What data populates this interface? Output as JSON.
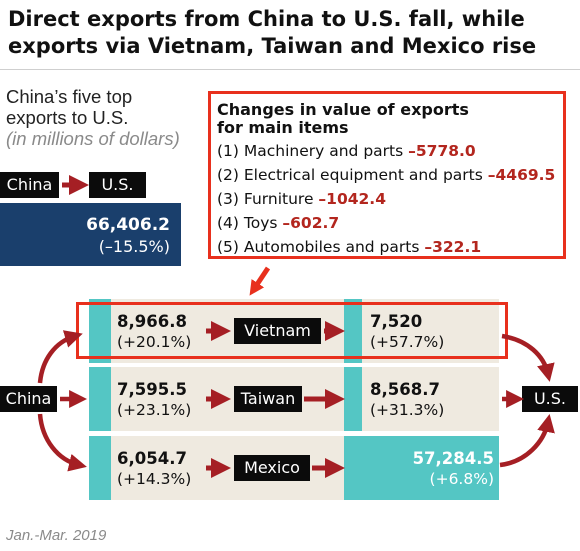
{
  "title": "Direct exports from China to U.S. fall, while exports via Vietnam, Taiwan and Mexico rise",
  "subtitle": {
    "line1": "China’s five top",
    "line2": "exports to U.S.",
    "unit": "(in millions of dollars)"
  },
  "direct": {
    "from": "China",
    "to": "U.S.",
    "value": "66,406.2",
    "change": "(–15.5%)"
  },
  "box": {
    "title_line1": "Changes in value of exports",
    "title_line2": "for main items",
    "items": [
      {
        "label": "(1) Machinery and parts",
        "value": "–5778.0"
      },
      {
        "label": "(2) Electrical equipment and parts",
        "value": "–4469.5"
      },
      {
        "label": "(3) Furniture",
        "value": "–1042.4"
      },
      {
        "label": "(4) Toys",
        "value": "–602.7"
      },
      {
        "label": "(5) Automobiles and parts",
        "value": "–322.1"
      }
    ]
  },
  "routes": {
    "origin": "China",
    "destination": "U.S.",
    "rows": [
      {
        "via": "Vietnam",
        "in_value": "8,966.8",
        "in_change": "(+20.1%)",
        "out_value": "7,520",
        "out_change": "(+57.7%)"
      },
      {
        "via": "Taiwan",
        "in_value": "7,595.5",
        "in_change": "(+23.1%)",
        "out_value": "8,568.7",
        "out_change": "(+31.3%)"
      },
      {
        "via": "Mexico",
        "in_value": "6,054.7",
        "in_change": "(+14.3%)",
        "out_value": "57,284.5",
        "out_change": "(+6.8%)"
      }
    ]
  },
  "date": "Jan.-Mar. 2019",
  "colors": {
    "navy": "#1a3f6c",
    "teal": "#54c6c4",
    "beige": "#efeae0",
    "highlight_red": "#e8301d",
    "arrow_red": "#a51f24",
    "negative_red": "#b3261e"
  },
  "chart_data": {
    "type": "flow",
    "title": "Direct exports from China to U.S. fall, while exports via Vietnam, Taiwan and Mexico rise",
    "unit": "millions of dollars",
    "direct": {
      "from": "China",
      "to": "U.S.",
      "value": 66406.2,
      "change_pct": -15.5
    },
    "via": [
      {
        "country": "Vietnam",
        "china_to_via": 8966.8,
        "china_to_via_change_pct": 20.1,
        "via_to_us": 7520,
        "via_to_us_change_pct": 57.7
      },
      {
        "country": "Taiwan",
        "china_to_via": 7595.5,
        "china_to_via_change_pct": 23.1,
        "via_to_us": 8568.7,
        "via_to_us_change_pct": 31.3
      },
      {
        "country": "Mexico",
        "china_to_via": 6054.7,
        "china_to_via_change_pct": 14.3,
        "via_to_us": 57284.5,
        "via_to_us_change_pct": 6.8
      }
    ],
    "direct_item_changes": [
      {
        "item": "Machinery and parts",
        "value": -5778.0
      },
      {
        "item": "Electrical equipment and parts",
        "value": -4469.5
      },
      {
        "item": "Furniture",
        "value": -1042.4
      },
      {
        "item": "Toys",
        "value": -602.7
      },
      {
        "item": "Automobiles and parts",
        "value": -322.1
      }
    ],
    "period": "Jan.-Mar. 2019"
  }
}
